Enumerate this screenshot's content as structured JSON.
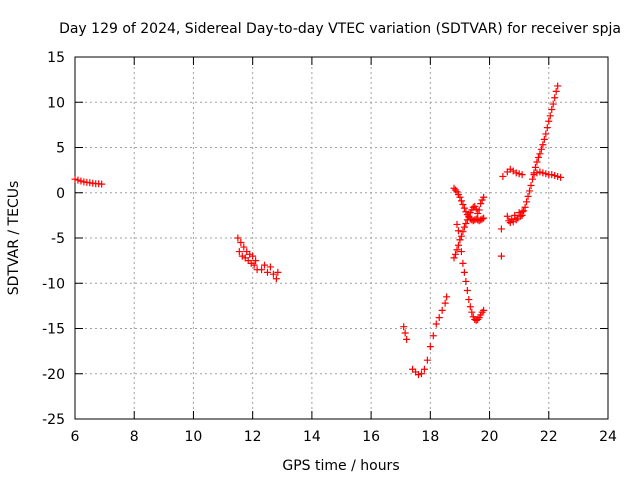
{
  "chart_data": {
    "type": "scatter",
    "title": "Day 129 of 2024, Sidereal Day-to-day VTEC variation (SDTVAR) for receiver spja",
    "xlabel": "GPS time / hours",
    "ylabel": "SDTVAR / TECUs",
    "xlim": [
      6,
      24
    ],
    "ylim": [
      -25,
      15
    ],
    "xticks": [
      6,
      8,
      10,
      12,
      14,
      16,
      18,
      20,
      22,
      24
    ],
    "yticks": [
      -25,
      -20,
      -15,
      -10,
      -5,
      0,
      5,
      10,
      15
    ],
    "grid": true,
    "marker": "plus",
    "color": "#ff0000",
    "segments": [
      {
        "x": [
          6.0,
          6.1,
          6.2,
          6.3,
          6.4,
          6.5,
          6.6,
          6.7,
          6.8,
          6.9
        ],
        "y": [
          1.5,
          1.4,
          1.3,
          1.2,
          1.15,
          1.1,
          1.05,
          1.0,
          1.0,
          0.95
        ]
      },
      {
        "x": [
          11.5,
          11.55,
          11.6,
          11.65,
          11.7,
          11.75,
          11.8,
          11.85,
          11.9,
          11.95,
          12.0,
          12.05,
          12.1,
          12.15
        ],
        "y": [
          -5.0,
          -6.5,
          -5.5,
          -7.0,
          -6.0,
          -7.2,
          -6.5,
          -7.5,
          -6.8,
          -7.8,
          -7.0,
          -8.0,
          -7.5,
          -8.5
        ]
      },
      {
        "x": [
          12.3,
          12.4,
          12.5,
          12.6,
          12.7,
          12.8,
          12.85
        ],
        "y": [
          -8.5,
          -8.0,
          -8.8,
          -8.2,
          -9.0,
          -9.5,
          -8.8
        ]
      },
      {
        "x": [
          17.1,
          17.15,
          17.2
        ],
        "y": [
          -14.8,
          -15.5,
          -16.2
        ]
      },
      {
        "x": [
          17.4,
          17.5,
          17.6,
          17.7,
          17.8,
          17.9,
          18.0,
          18.1,
          18.2,
          18.3,
          18.4,
          18.5,
          18.55
        ],
        "y": [
          -19.5,
          -19.8,
          -20.1,
          -20.0,
          -19.5,
          -18.5,
          -17.0,
          -15.8,
          -14.5,
          -13.8,
          -13.0,
          -12.2,
          -11.5
        ]
      },
      {
        "x": [
          18.8,
          18.85,
          18.9,
          18.95,
          19.0,
          19.05,
          19.1,
          19.15,
          19.2,
          19.25,
          19.3,
          19.35,
          19.4,
          19.45,
          19.5,
          19.55,
          19.6,
          19.65,
          19.7,
          19.75,
          19.8
        ],
        "y": [
          -7.2,
          -6.8,
          -6.3,
          -5.8,
          -5.2,
          -4.8,
          -4.3,
          -3.8,
          -3.4,
          -3.0,
          -2.6,
          -2.2,
          -1.9,
          -1.6,
          -1.5,
          -1.8,
          -2.3,
          -1.9,
          -1.2,
          -0.8,
          -0.5
        ]
      },
      {
        "x": [
          18.8,
          18.85,
          18.9,
          18.95,
          19.0,
          19.05,
          19.1,
          19.15,
          19.2,
          19.25,
          19.3,
          19.35,
          19.4,
          19.45,
          19.5,
          19.55,
          19.6,
          19.65,
          19.7,
          19.75,
          19.8
        ],
        "y": [
          0.5,
          0.3,
          0.1,
          -0.2,
          -0.5,
          -0.9,
          -1.3,
          -1.7,
          -2.1,
          -2.4,
          -2.7,
          -2.9,
          -3.0,
          -3.1,
          -3.0,
          -2.9,
          -3.0,
          -3.1,
          -3.0,
          -2.9,
          -2.8
        ]
      },
      {
        "x": [
          18.9,
          18.95,
          19.0,
          19.05,
          19.1,
          19.15,
          19.2,
          19.25,
          19.3,
          19.35,
          19.4,
          19.45,
          19.5,
          19.55,
          19.6,
          19.65,
          19.7,
          19.75,
          19.8
        ],
        "y": [
          -3.5,
          -4.2,
          -5.2,
          -6.5,
          -7.8,
          -8.8,
          -9.8,
          -10.8,
          -11.8,
          -12.6,
          -13.2,
          -13.7,
          -14.0,
          -14.1,
          -14.0,
          -13.8,
          -13.5,
          -13.2,
          -13.0
        ]
      },
      {
        "x": [
          20.4,
          20.4,
          20.45
        ],
        "y": [
          -7.0,
          -4.0,
          1.8
        ]
      },
      {
        "x": [
          20.6,
          20.65,
          20.7,
          20.75,
          20.8,
          20.85,
          20.9,
          20.95,
          21.0,
          21.05,
          21.1
        ],
        "y": [
          -2.6,
          -3.1,
          -3.3,
          -2.9,
          -3.2,
          -2.5,
          -3.0,
          -2.8,
          -2.2,
          -2.6,
          -2.1
        ]
      },
      {
        "x": [
          20.6,
          20.7,
          20.8,
          20.9,
          21.0,
          21.1
        ],
        "y": [
          2.3,
          2.6,
          2.4,
          2.2,
          2.1,
          2.0
        ]
      },
      {
        "x": [
          21.1,
          21.15,
          21.2,
          21.25,
          21.3,
          21.35,
          21.4,
          21.45,
          21.5,
          21.55,
          21.6,
          21.65,
          21.7,
          21.75,
          21.8,
          21.85,
          21.9,
          21.95,
          22.0,
          22.05,
          22.1,
          22.15,
          22.2,
          22.25,
          22.3
        ],
        "y": [
          -2.5,
          -2.0,
          -1.6,
          -1.0,
          -0.4,
          0.2,
          0.8,
          1.5,
          2.2,
          2.8,
          3.4,
          3.9,
          4.3,
          4.8,
          5.3,
          5.9,
          6.5,
          7.2,
          7.9,
          8.5,
          9.2,
          9.8,
          10.5,
          11.2,
          11.8
        ]
      },
      {
        "x": [
          21.5,
          21.6,
          21.7,
          21.8,
          21.9,
          22.0,
          22.1,
          22.2,
          22.3,
          22.4
        ],
        "y": [
          2.0,
          2.2,
          2.3,
          2.2,
          2.1,
          2.0,
          2.0,
          1.9,
          1.8,
          1.7
        ]
      }
    ]
  }
}
